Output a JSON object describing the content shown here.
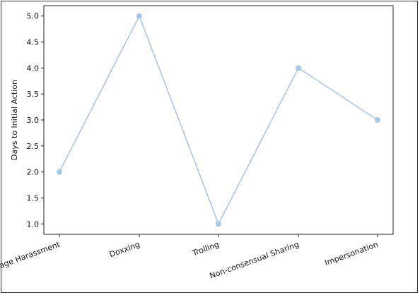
{
  "chart_data": {
    "type": "line",
    "categories": [
      "Image Harassment",
      "Doxxing",
      "Trolling",
      "Non-consensual Sharing",
      "Impersonation"
    ],
    "values": [
      2.0,
      5.0,
      1.0,
      4.0,
      3.0
    ],
    "title": "",
    "xlabel": "",
    "ylabel": "Days to Initial Action",
    "ylim": [
      1.0,
      5.0
    ],
    "yticks": [
      "1.0",
      "1.5",
      "2.0",
      "2.5",
      "3.0",
      "3.5",
      "4.0",
      "4.5",
      "5.0"
    ],
    "xtick_rotation": "rotated 20 degrees",
    "grid": false,
    "legend": "none",
    "series_color": "#a8c8e6",
    "marker": "circle"
  }
}
